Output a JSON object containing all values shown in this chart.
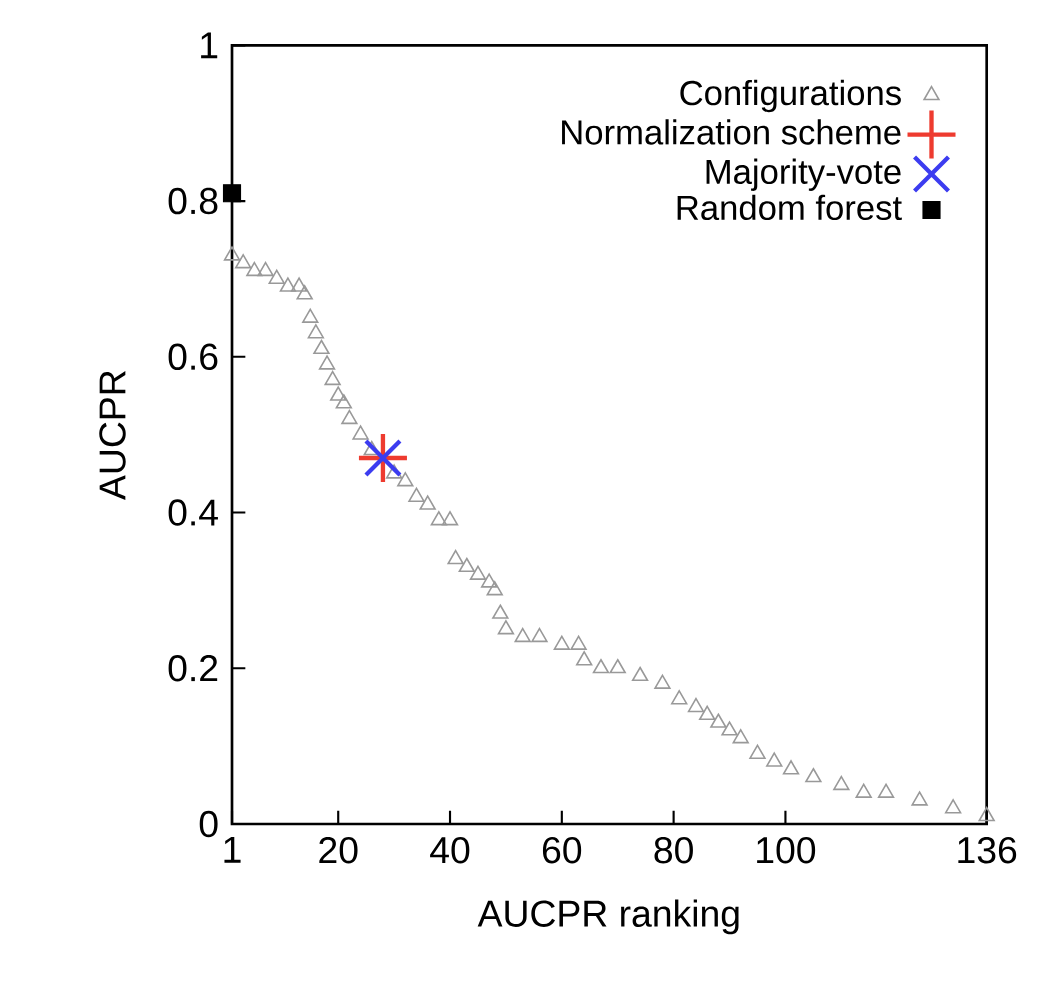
{
  "chart_data": {
    "type": "scatter",
    "xlabel": "AUCPR ranking",
    "ylabel": "AUCPR",
    "xlim": [
      1,
      136
    ],
    "ylim": [
      0,
      1
    ],
    "xticks": [
      1,
      20,
      40,
      60,
      80,
      100,
      136
    ],
    "yticks": [
      0,
      0.2,
      0.4,
      0.6,
      0.8,
      1
    ],
    "grid": false,
    "legend": "top right",
    "series": [
      {
        "name": "Configurations",
        "color": "#999999",
        "marker": "triangle",
        "x": [
          1,
          3,
          5,
          7,
          9,
          11,
          13,
          14,
          15,
          16,
          17,
          18,
          19,
          20,
          21,
          22,
          24,
          26,
          28,
          30,
          32,
          34,
          36,
          38,
          40,
          41,
          43,
          45,
          47,
          48,
          49,
          50,
          53,
          56,
          60,
          63,
          64,
          67,
          70,
          74,
          78,
          81,
          84,
          86,
          88,
          90,
          92,
          95,
          98,
          101,
          105,
          110,
          114,
          118,
          124,
          130,
          136
        ],
        "values": [
          0.73,
          0.72,
          0.71,
          0.71,
          0.7,
          0.69,
          0.69,
          0.68,
          0.65,
          0.63,
          0.61,
          0.59,
          0.57,
          0.55,
          0.54,
          0.52,
          0.5,
          0.48,
          null,
          0.45,
          0.44,
          0.42,
          0.41,
          0.39,
          0.39,
          0.34,
          0.33,
          0.32,
          0.31,
          0.3,
          0.27,
          0.25,
          0.24,
          0.24,
          0.23,
          0.23,
          0.21,
          0.2,
          0.2,
          0.19,
          0.18,
          0.16,
          0.15,
          0.14,
          0.13,
          0.12,
          0.11,
          0.09,
          0.08,
          0.07,
          0.06,
          0.05,
          0.04,
          0.04,
          0.03,
          0.02,
          0.01
        ]
      },
      {
        "name": "Normalization scheme",
        "color": "#ee3b2f",
        "marker": "cross",
        "x": [
          28
        ],
        "values": [
          0.47
        ]
      },
      {
        "name": "Majority-vote",
        "color": "#3c3cf0",
        "x": [
          28
        ],
        "values": [
          0.47
        ]
      },
      {
        "name": "Random forest",
        "color": "#000000",
        "marker": "square",
        "x": [
          1
        ],
        "values": [
          0.81
        ]
      }
    ]
  }
}
